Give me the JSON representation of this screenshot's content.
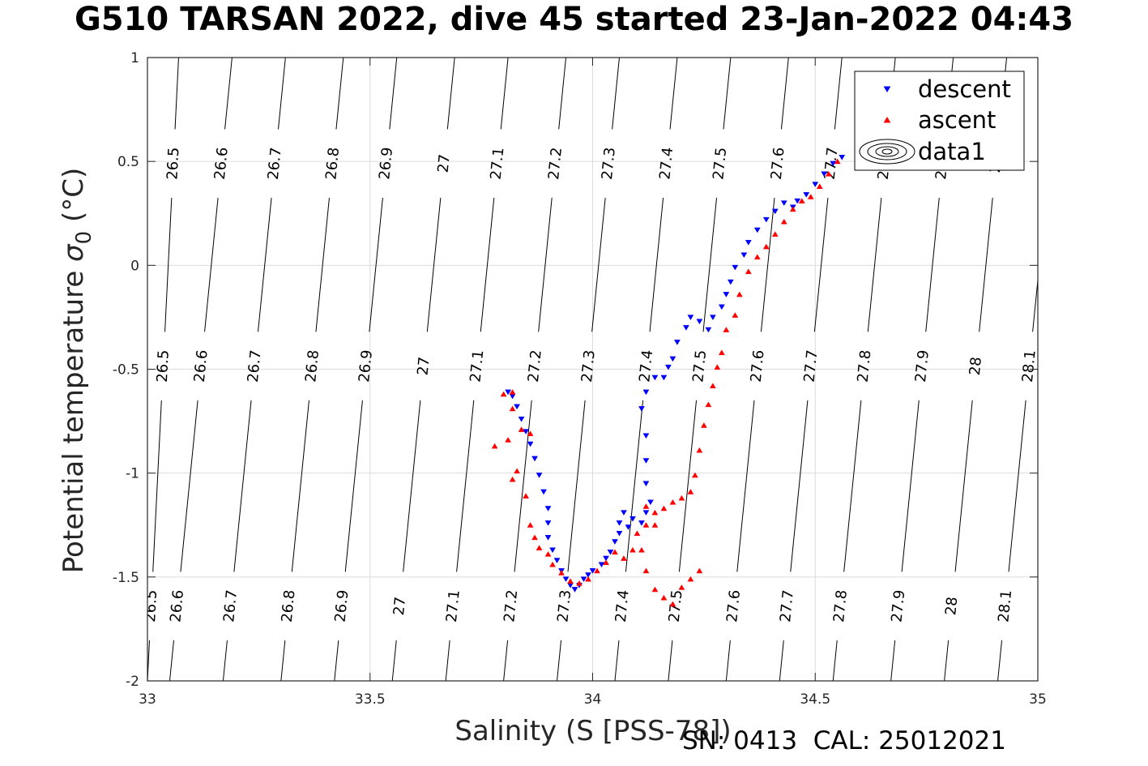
{
  "title": "G510 TARSAN 2022, dive 45 started 23-Jan-2022 04:43",
  "footer": "SN: 0413  CAL: 25012021",
  "chart_data": {
    "type": "scatter",
    "title": "G510 TARSAN 2022, dive 45 started 23-Jan-2022 04:43",
    "xlabel": "Salinity (S [PSS-78])",
    "ylabel": "Potential temperature σ 0 (°C)",
    "ylabel_parts": {
      "main": "Potential temperature ",
      "sigma": "σ",
      "sub": "0",
      "unit": " (°C)"
    },
    "xlim": [
      33,
      35
    ],
    "ylim": [
      -2,
      1
    ],
    "xticks": [
      33,
      33.5,
      34,
      34.5,
      35
    ],
    "xtick_labels": [
      "33",
      "33.5",
      "34",
      "34.5",
      "35"
    ],
    "yticks": [
      -2,
      -1.5,
      -1,
      -0.5,
      0,
      0.5,
      1
    ],
    "ytick_labels": [
      "-2",
      "-1.5",
      "-1",
      "-0.5",
      "0",
      "0.5",
      "1"
    ],
    "grid": true,
    "legend_position": "top-right",
    "legend": [
      {
        "label": "descent",
        "marker": "triangle-down",
        "color": "#0000ff"
      },
      {
        "label": "ascent",
        "marker": "triangle-up",
        "color": "#ff0000"
      },
      {
        "label": "data1",
        "marker": "contour",
        "color": "#000000"
      }
    ],
    "isopycnals": [
      {
        "label": "26.5",
        "xs": [
          33.0,
          33.07
        ]
      },
      {
        "label": "26.6",
        "xs": [
          33.05,
          33.19
        ]
      },
      {
        "label": "26.7",
        "xs": [
          33.17,
          33.31
        ]
      },
      {
        "label": "26.8",
        "xs": [
          33.3,
          33.44
        ]
      },
      {
        "label": "26.9",
        "xs": [
          33.42,
          33.56
        ]
      },
      {
        "label": "27",
        "xs": [
          33.55,
          33.69
        ]
      },
      {
        "label": "27.1",
        "xs": [
          33.67,
          33.81
        ]
      },
      {
        "label": "27.2",
        "xs": [
          33.8,
          33.94
        ]
      },
      {
        "label": "27.3",
        "xs": [
          33.92,
          34.06
        ]
      },
      {
        "label": "27.4",
        "xs": [
          34.05,
          34.19
        ]
      },
      {
        "label": "27.5",
        "xs": [
          34.17,
          34.31
        ]
      },
      {
        "label": "27.6",
        "xs": [
          34.3,
          34.44
        ]
      },
      {
        "label": "27.7",
        "xs": [
          34.42,
          34.56
        ]
      },
      {
        "label": "27.8",
        "xs": [
          34.54,
          34.68
        ]
      },
      {
        "label": "27.9",
        "xs": [
          34.67,
          34.81
        ]
      },
      {
        "label": "28",
        "xs": [
          34.79,
          34.93
        ]
      },
      {
        "label": "28.1",
        "xs": [
          34.91,
          35.05
        ]
      }
    ],
    "series": [
      {
        "name": "descent",
        "color": "#0000ff",
        "marker": "triangle-down",
        "points": [
          [
            34.56,
            0.52
          ],
          [
            34.54,
            0.49
          ],
          [
            34.52,
            0.44
          ],
          [
            34.5,
            0.39
          ],
          [
            34.48,
            0.34
          ],
          [
            34.46,
            0.31
          ],
          [
            34.45,
            0.28
          ],
          [
            34.43,
            0.3
          ],
          [
            34.41,
            0.26
          ],
          [
            34.39,
            0.22
          ],
          [
            34.37,
            0.17
          ],
          [
            34.35,
            0.11
          ],
          [
            34.34,
            0.05
          ],
          [
            34.32,
            -0.01
          ],
          [
            34.31,
            -0.08
          ],
          [
            34.3,
            -0.14
          ],
          [
            34.29,
            -0.2
          ],
          [
            34.27,
            -0.25
          ],
          [
            34.26,
            -0.31
          ],
          [
            34.24,
            -0.27
          ],
          [
            34.22,
            -0.25
          ],
          [
            34.21,
            -0.3
          ],
          [
            34.19,
            -0.37
          ],
          [
            34.18,
            -0.45
          ],
          [
            34.17,
            -0.49
          ],
          [
            34.16,
            -0.54
          ],
          [
            34.14,
            -0.54
          ],
          [
            34.12,
            -0.61
          ],
          [
            34.11,
            -0.69
          ],
          [
            34.12,
            -0.82
          ],
          [
            34.12,
            -0.94
          ],
          [
            34.12,
            -1.05
          ],
          [
            34.13,
            -1.14
          ],
          [
            34.12,
            -1.19
          ],
          [
            34.11,
            -1.24
          ],
          [
            34.09,
            -1.22
          ],
          [
            34.08,
            -1.26
          ],
          [
            34.07,
            -1.19
          ],
          [
            34.06,
            -1.24
          ],
          [
            34.06,
            -1.29
          ],
          [
            34.05,
            -1.33
          ],
          [
            34.04,
            -1.38
          ],
          [
            34.03,
            -1.41
          ],
          [
            34.02,
            -1.44
          ],
          [
            34.0,
            -1.47
          ],
          [
            33.99,
            -1.49
          ],
          [
            33.98,
            -1.51
          ],
          [
            33.97,
            -1.54
          ],
          [
            33.96,
            -1.56
          ],
          [
            33.95,
            -1.54
          ],
          [
            33.94,
            -1.51
          ],
          [
            33.93,
            -1.47
          ],
          [
            33.92,
            -1.42
          ],
          [
            33.91,
            -1.37
          ],
          [
            33.9,
            -1.31
          ],
          [
            33.9,
            -1.24
          ],
          [
            33.9,
            -1.17
          ],
          [
            33.89,
            -1.09
          ],
          [
            33.88,
            -1.01
          ],
          [
            33.87,
            -0.93
          ],
          [
            33.86,
            -0.86
          ],
          [
            33.85,
            -0.8
          ],
          [
            33.84,
            -0.74
          ],
          [
            33.83,
            -0.68
          ],
          [
            33.82,
            -0.63
          ],
          [
            33.81,
            -0.61
          ]
        ]
      },
      {
        "name": "ascent",
        "color": "#ff0000",
        "marker": "triangle-up",
        "points": [
          [
            33.78,
            -0.87
          ],
          [
            33.81,
            -0.84
          ],
          [
            33.82,
            -0.61
          ],
          [
            33.8,
            -0.62
          ],
          [
            33.82,
            -0.69
          ],
          [
            33.84,
            -0.79
          ],
          [
            33.86,
            -0.81
          ],
          [
            33.83,
            -0.99
          ],
          [
            33.82,
            -1.03
          ],
          [
            33.85,
            -1.11
          ],
          [
            33.86,
            -1.25
          ],
          [
            33.87,
            -1.31
          ],
          [
            33.88,
            -1.36
          ],
          [
            33.9,
            -1.39
          ],
          [
            33.91,
            -1.44
          ],
          [
            33.93,
            -1.48
          ],
          [
            33.95,
            -1.52
          ],
          [
            33.97,
            -1.53
          ],
          [
            33.99,
            -1.51
          ],
          [
            34.01,
            -1.47
          ],
          [
            34.03,
            -1.43
          ],
          [
            34.05,
            -1.38
          ],
          [
            34.07,
            -1.41
          ],
          [
            34.09,
            -1.37
          ],
          [
            34.1,
            -1.29
          ],
          [
            34.12,
            -1.25
          ],
          [
            34.14,
            -1.19
          ],
          [
            34.16,
            -1.17
          ],
          [
            34.18,
            -1.14
          ],
          [
            34.2,
            -1.12
          ],
          [
            34.22,
            -1.09
          ],
          [
            34.23,
            -1.01
          ],
          [
            34.24,
            -0.89
          ],
          [
            34.25,
            -0.77
          ],
          [
            34.26,
            -0.67
          ],
          [
            34.27,
            -0.58
          ],
          [
            34.28,
            -0.49
          ],
          [
            34.29,
            -0.42
          ],
          [
            34.3,
            -0.31
          ],
          [
            34.32,
            -0.24
          ],
          [
            34.33,
            -0.14
          ],
          [
            34.35,
            -0.03
          ],
          [
            34.37,
            0.04
          ],
          [
            34.39,
            0.09
          ],
          [
            34.41,
            0.15
          ],
          [
            34.43,
            0.21
          ],
          [
            34.45,
            0.27
          ],
          [
            34.47,
            0.31
          ],
          [
            34.49,
            0.33
          ],
          [
            34.51,
            0.38
          ],
          [
            34.53,
            0.44
          ],
          [
            34.55,
            0.5
          ],
          [
            34.12,
            -1.16
          ],
          [
            34.14,
            -1.25
          ],
          [
            34.11,
            -1.37
          ],
          [
            34.12,
            -1.47
          ],
          [
            34.14,
            -1.56
          ],
          [
            34.16,
            -1.6
          ],
          [
            34.18,
            -1.63
          ],
          [
            34.2,
            -1.55
          ],
          [
            34.22,
            -1.51
          ],
          [
            34.24,
            -1.47
          ]
        ]
      }
    ]
  }
}
